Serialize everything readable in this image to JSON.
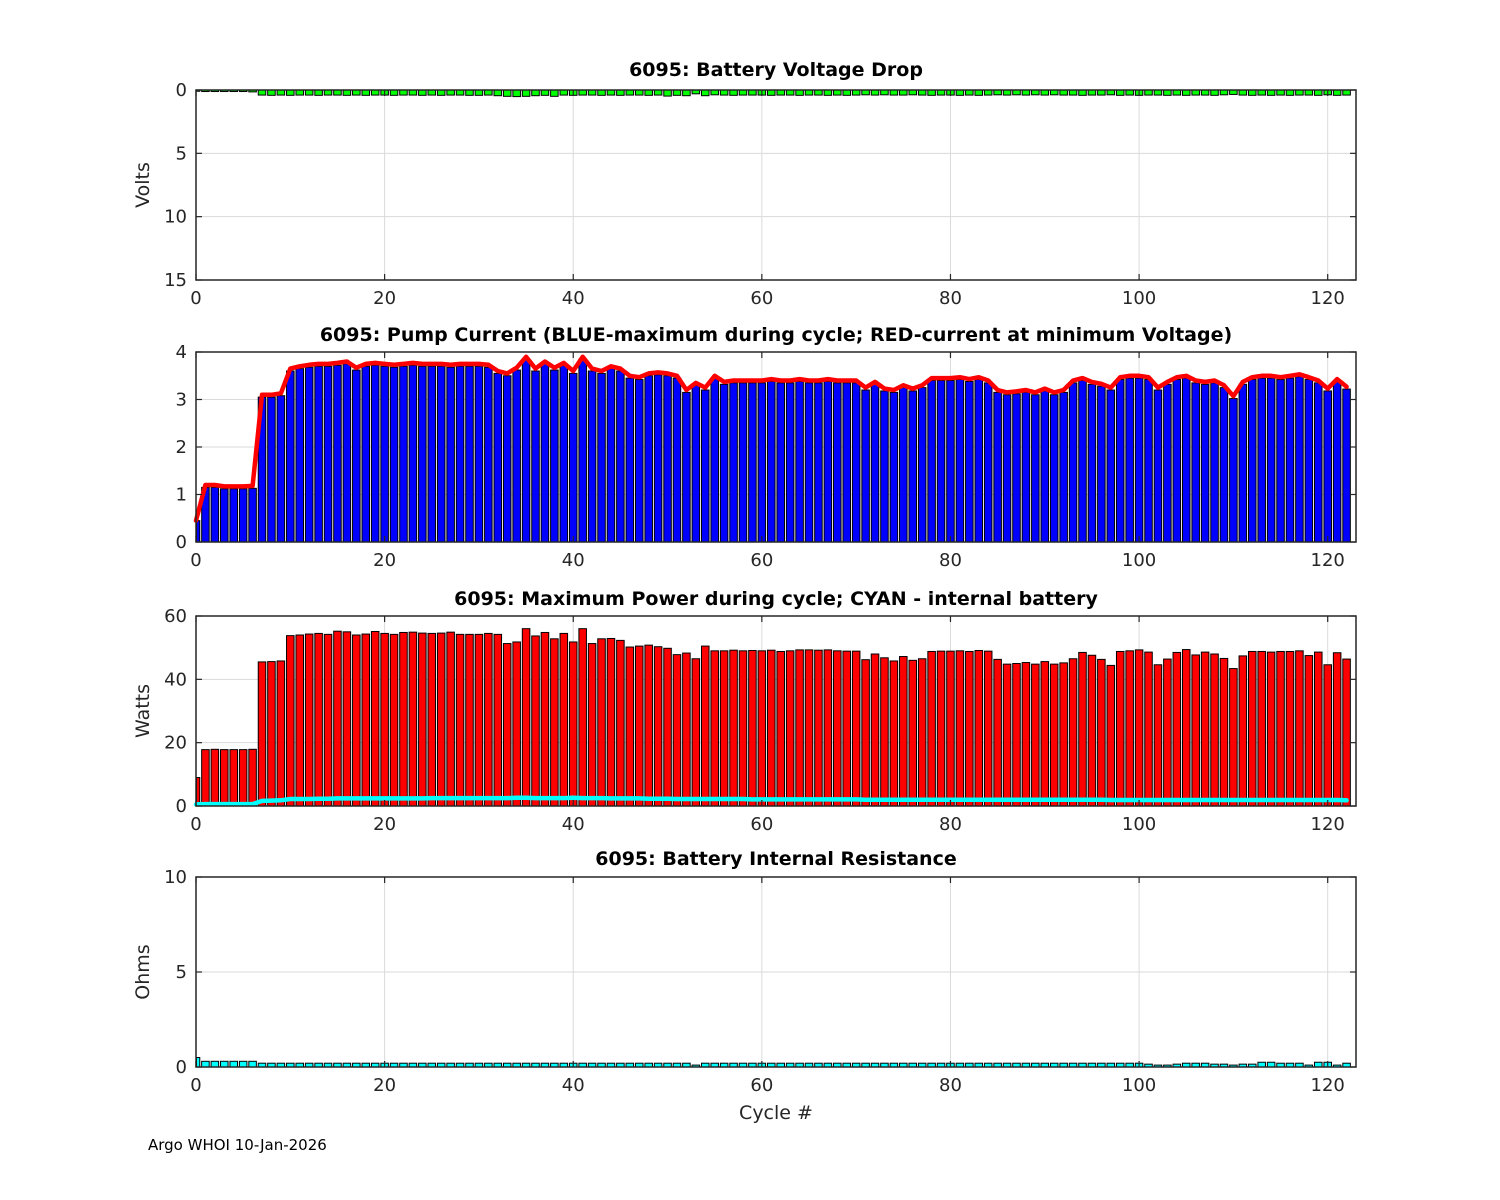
{
  "figure": {
    "float_id": "6095",
    "xlabel": "Cycle #",
    "footer": "Argo WHOI 10-Jan-2026"
  },
  "chart_data": [
    {
      "id": "battery-voltage-drop",
      "type": "bar",
      "title": "6095: Battery Voltage Drop",
      "ylabel": "Volts",
      "ylim": [
        0,
        15
      ],
      "y_reversed": true,
      "yticks": [
        0,
        5,
        10,
        15
      ],
      "xlim": [
        0,
        123
      ],
      "xticks": [
        0,
        20,
        40,
        60,
        80,
        100,
        120
      ],
      "grid": true,
      "x_is_cycle_number": true,
      "bar_color": "#00ff00",
      "bar_edge_color": "#000000",
      "values": [
        0.1,
        0.12,
        0.12,
        0.12,
        0.12,
        0.12,
        0.15,
        0.4,
        0.42,
        0.4,
        0.42,
        0.4,
        0.4,
        0.42,
        0.4,
        0.4,
        0.42,
        0.4,
        0.42,
        0.4,
        0.4,
        0.42,
        0.4,
        0.4,
        0.42,
        0.4,
        0.42,
        0.4,
        0.4,
        0.42,
        0.42,
        0.4,
        0.45,
        0.5,
        0.52,
        0.5,
        0.45,
        0.42,
        0.5,
        0.4,
        0.42,
        0.4,
        0.4,
        0.42,
        0.4,
        0.42,
        0.4,
        0.4,
        0.42,
        0.4,
        0.48,
        0.42,
        0.45,
        0.3,
        0.45,
        0.38,
        0.4,
        0.42,
        0.4,
        0.4,
        0.4,
        0.42,
        0.4,
        0.4,
        0.42,
        0.4,
        0.4,
        0.42,
        0.4,
        0.42,
        0.4,
        0.38,
        0.4,
        0.38,
        0.4,
        0.4,
        0.38,
        0.4,
        0.42,
        0.4,
        0.4,
        0.42,
        0.4,
        0.42,
        0.4,
        0.38,
        0.4,
        0.38,
        0.4,
        0.38,
        0.4,
        0.38,
        0.4,
        0.4,
        0.42,
        0.4,
        0.4,
        0.38,
        0.42,
        0.4,
        0.42,
        0.4,
        0.4,
        0.42,
        0.4,
        0.42,
        0.4,
        0.4,
        0.42,
        0.38,
        0.35,
        0.4,
        0.42,
        0.4,
        0.42,
        0.4,
        0.42,
        0.4,
        0.4,
        0.42,
        0.38,
        0.42,
        0.4
      ]
    },
    {
      "id": "pump-current",
      "type": "bar+line",
      "title": "6095: Pump Current (BLUE-maximum during cycle; RED-current at minimum Voltage)",
      "ylabel": "",
      "ylim": [
        0,
        4
      ],
      "yticks": [
        0,
        1,
        2,
        3,
        4
      ],
      "xlim": [
        0,
        123
      ],
      "xticks": [
        0,
        20,
        40,
        60,
        80,
        100,
        120
      ],
      "grid": true,
      "x_is_cycle_number": true,
      "bar_color": "#0000ff",
      "bar_edge_color": "#000000",
      "line_color": "#ff0000",
      "bar_series_name": "maximum current during cycle (A)",
      "line_series_name": "current at minimum voltage (A)",
      "values": [
        0.45,
        1.15,
        1.15,
        1.12,
        1.12,
        1.12,
        1.13,
        3.05,
        3.05,
        3.08,
        3.6,
        3.65,
        3.68,
        3.7,
        3.7,
        3.72,
        3.75,
        3.62,
        3.7,
        3.72,
        3.7,
        3.68,
        3.7,
        3.72,
        3.7,
        3.7,
        3.7,
        3.68,
        3.7,
        3.7,
        3.7,
        3.68,
        3.55,
        3.5,
        3.62,
        3.85,
        3.6,
        3.75,
        3.62,
        3.72,
        3.55,
        3.85,
        3.6,
        3.55,
        3.65,
        3.6,
        3.45,
        3.42,
        3.5,
        3.52,
        3.5,
        3.45,
        3.15,
        3.3,
        3.2,
        3.45,
        3.32,
        3.35,
        3.35,
        3.35,
        3.35,
        3.38,
        3.35,
        3.35,
        3.38,
        3.35,
        3.35,
        3.38,
        3.35,
        3.35,
        3.35,
        3.2,
        3.32,
        3.18,
        3.15,
        3.25,
        3.18,
        3.25,
        3.4,
        3.4,
        3.4,
        3.42,
        3.38,
        3.42,
        3.35,
        3.15,
        3.1,
        3.12,
        3.15,
        3.1,
        3.18,
        3.1,
        3.15,
        3.35,
        3.4,
        3.32,
        3.28,
        3.2,
        3.42,
        3.45,
        3.45,
        3.42,
        3.2,
        3.32,
        3.42,
        3.45,
        3.35,
        3.32,
        3.35,
        3.25,
        3.02,
        3.32,
        3.42,
        3.45,
        3.45,
        3.42,
        3.45,
        3.48,
        3.42,
        3.35,
        3.18,
        3.38,
        3.22
      ],
      "line_values": [
        0.45,
        1.2,
        1.2,
        1.17,
        1.17,
        1.17,
        1.18,
        3.1,
        3.1,
        3.13,
        3.65,
        3.7,
        3.73,
        3.75,
        3.75,
        3.77,
        3.8,
        3.67,
        3.75,
        3.77,
        3.75,
        3.73,
        3.75,
        3.77,
        3.75,
        3.75,
        3.75,
        3.73,
        3.75,
        3.75,
        3.75,
        3.73,
        3.6,
        3.55,
        3.67,
        3.9,
        3.65,
        3.8,
        3.67,
        3.77,
        3.6,
        3.9,
        3.65,
        3.6,
        3.7,
        3.65,
        3.5,
        3.47,
        3.55,
        3.57,
        3.55,
        3.5,
        3.2,
        3.35,
        3.25,
        3.5,
        3.37,
        3.4,
        3.4,
        3.4,
        3.4,
        3.43,
        3.4,
        3.4,
        3.43,
        3.4,
        3.4,
        3.43,
        3.4,
        3.4,
        3.4,
        3.25,
        3.37,
        3.23,
        3.2,
        3.3,
        3.23,
        3.3,
        3.45,
        3.45,
        3.45,
        3.47,
        3.43,
        3.47,
        3.4,
        3.2,
        3.15,
        3.17,
        3.2,
        3.15,
        3.23,
        3.15,
        3.2,
        3.4,
        3.45,
        3.37,
        3.33,
        3.25,
        3.47,
        3.5,
        3.5,
        3.47,
        3.25,
        3.37,
        3.47,
        3.5,
        3.4,
        3.37,
        3.4,
        3.3,
        3.07,
        3.37,
        3.47,
        3.5,
        3.5,
        3.47,
        3.5,
        3.53,
        3.47,
        3.4,
        3.23,
        3.43,
        3.27
      ]
    },
    {
      "id": "maximum-power",
      "type": "bar+line",
      "title": "6095: Maximum Power during cycle; CYAN - internal battery",
      "ylabel": "Watts",
      "ylim": [
        0,
        60
      ],
      "yticks": [
        0,
        20,
        40,
        60
      ],
      "xlim": [
        0,
        123
      ],
      "xticks": [
        0,
        20,
        40,
        60,
        80,
        100,
        120
      ],
      "grid": true,
      "x_is_cycle_number": true,
      "bar_color": "#ff0000",
      "bar_edge_color": "#000000",
      "line_color": "#00ffff",
      "bar_series_name": "maximum power during cycle (W)",
      "line_series_name": "internal battery power (W)",
      "values": [
        9,
        17.8,
        17.9,
        17.8,
        17.8,
        17.8,
        17.9,
        45.5,
        45.6,
        45.8,
        53.8,
        54,
        54.3,
        54.5,
        54.2,
        55.2,
        55,
        54,
        54.3,
        55.1,
        54.5,
        54.2,
        54.8,
        54.9,
        54.6,
        54.5,
        54.6,
        54.9,
        54.2,
        54.2,
        54.2,
        54.5,
        54.2,
        51.3,
        51.8,
        56,
        53.7,
        54.8,
        52.8,
        54.5,
        51.8,
        56,
        51.3,
        52.8,
        52.9,
        52.3,
        50.2,
        50.5,
        50.8,
        50.3,
        49.8,
        47.8,
        48.3,
        46.5,
        50.5,
        49,
        49,
        49.2,
        49,
        49.1,
        49,
        49.2,
        48.8,
        49,
        49.3,
        49.3,
        49.2,
        49.3,
        49,
        48.9,
        48.9,
        46.2,
        48,
        46.8,
        45.8,
        47.2,
        46,
        46.5,
        48.8,
        48.9,
        48.9,
        49,
        48.8,
        49.1,
        48.9,
        46.3,
        44.8,
        45,
        45.3,
        44.8,
        45.6,
        44.8,
        45.2,
        46.5,
        48.5,
        47.6,
        46.3,
        44.4,
        48.8,
        49,
        49.3,
        48.6,
        44.6,
        46.4,
        48.5,
        49.4,
        47.7,
        48.6,
        48,
        46.6,
        43.4,
        47.4,
        48.8,
        48.8,
        48.6,
        48.8,
        48.8,
        49,
        47.5,
        48.6,
        44.6,
        48.4,
        46.4
      ],
      "line_values": [
        0.5,
        0.6,
        0.6,
        0.6,
        0.6,
        0.6,
        0.6,
        1.6,
        1.7,
        1.8,
        2.2,
        2.2,
        2.2,
        2.3,
        2.3,
        2.4,
        2.4,
        2.4,
        2.4,
        2.4,
        2.4,
        2.4,
        2.4,
        2.4,
        2.4,
        2.5,
        2.5,
        2.5,
        2.5,
        2.5,
        2.5,
        2.5,
        2.5,
        2.5,
        2.6,
        2.6,
        2.5,
        2.5,
        2.5,
        2.5,
        2.6,
        2.5,
        2.5,
        2.5,
        2.4,
        2.4,
        2.4,
        2.4,
        2.3,
        2.3,
        2.3,
        2.2,
        2.2,
        2.2,
        2.2,
        2.2,
        2.2,
        2.2,
        2.2,
        2.1,
        2.1,
        2.1,
        2.1,
        2.1,
        2.1,
        2.1,
        2.1,
        2.1,
        2.1,
        2.1,
        2.1,
        2,
        2,
        2,
        2,
        2,
        2,
        2,
        2,
        2,
        2,
        2,
        2,
        2,
        2,
        2,
        2,
        2,
        2,
        2,
        2,
        2,
        2,
        2,
        2,
        2,
        2,
        1.9,
        1.9,
        1.9,
        1.9,
        1.9,
        1.9,
        1.9,
        1.9,
        1.9,
        1.9,
        1.9,
        1.9,
        1.9,
        1.9,
        1.9,
        1.9,
        1.9,
        1.9,
        1.9,
        1.9,
        1.9,
        1.9,
        1.9,
        1.9,
        1.9,
        1.8
      ]
    },
    {
      "id": "battery-internal-resistance",
      "type": "bar",
      "title": "6095: Battery Internal Resistance",
      "ylabel": "Ohms",
      "ylim": [
        0,
        10
      ],
      "yticks": [
        0,
        5,
        10
      ],
      "xlim": [
        0,
        123
      ],
      "xticks": [
        0,
        20,
        40,
        60,
        80,
        100,
        120
      ],
      "grid": true,
      "x_is_cycle_number": true,
      "bar_color": "#00ffff",
      "bar_edge_color": "#000000",
      "values": [
        0.5,
        0.3,
        0.3,
        0.3,
        0.3,
        0.3,
        0.3,
        0.2,
        0.2,
        0.2,
        0.2,
        0.2,
        0.2,
        0.2,
        0.2,
        0.2,
        0.2,
        0.2,
        0.2,
        0.2,
        0.2,
        0.2,
        0.2,
        0.2,
        0.2,
        0.2,
        0.2,
        0.2,
        0.2,
        0.2,
        0.2,
        0.2,
        0.2,
        0.2,
        0.2,
        0.2,
        0.2,
        0.2,
        0.2,
        0.2,
        0.2,
        0.2,
        0.2,
        0.2,
        0.2,
        0.2,
        0.2,
        0.2,
        0.2,
        0.2,
        0.2,
        0.2,
        0.2,
        0.1,
        0.2,
        0.2,
        0.2,
        0.2,
        0.2,
        0.2,
        0.2,
        0.2,
        0.2,
        0.2,
        0.2,
        0.2,
        0.2,
        0.2,
        0.2,
        0.2,
        0.2,
        0.2,
        0.2,
        0.2,
        0.2,
        0.2,
        0.2,
        0.2,
        0.2,
        0.2,
        0.2,
        0.2,
        0.2,
        0.2,
        0.2,
        0.2,
        0.2,
        0.2,
        0.2,
        0.2,
        0.2,
        0.2,
        0.2,
        0.2,
        0.2,
        0.2,
        0.2,
        0.2,
        0.2,
        0.2,
        0.2,
        0.15,
        0.1,
        0.1,
        0.15,
        0.2,
        0.2,
        0.2,
        0.15,
        0.15,
        0.1,
        0.15,
        0.15,
        0.25,
        0.25,
        0.2,
        0.2,
        0.2,
        0.1,
        0.25,
        0.25,
        0.1,
        0.2
      ]
    }
  ],
  "style": {
    "axis_color": "#262626",
    "grid_color": "#dadada",
    "tick_label_color": "#262626",
    "background": "#ffffff"
  }
}
